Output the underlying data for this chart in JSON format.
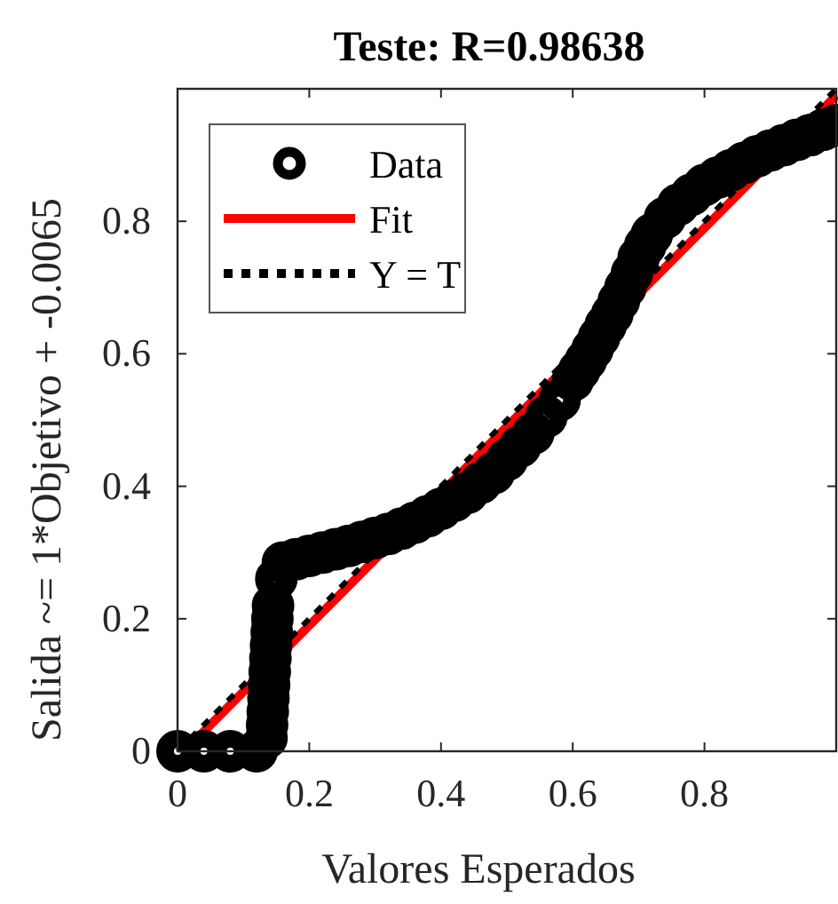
{
  "chart_data": {
    "type": "scatter",
    "title": "Teste: R=0.98638",
    "xlabel": "Valores Esperados",
    "ylabel": "Salida ~= 1*Objetivo + -0.0065",
    "xlim": [
      0,
      1
    ],
    "ylim": [
      0,
      1
    ],
    "xticks": [
      0,
      0.2,
      0.4,
      0.6,
      0.8
    ],
    "yticks": [
      0,
      0.2,
      0.4,
      0.6,
      0.8
    ],
    "grid": false,
    "legend": "top left",
    "series": [
      {
        "name": "Data",
        "marker": "circle",
        "color": "#000000",
        "x": [
          0,
          0.04,
          0.08,
          0.12,
          0.135,
          0.136,
          0.137,
          0.138,
          0.139,
          0.14,
          0.141,
          0.142,
          0.143,
          0.144,
          0.145,
          0.15,
          0.16,
          0.18,
          0.2,
          0.22,
          0.24,
          0.26,
          0.28,
          0.3,
          0.32,
          0.34,
          0.36,
          0.38,
          0.4,
          0.42,
          0.44,
          0.46,
          0.48,
          0.5,
          0.52,
          0.54,
          0.56,
          0.58,
          0.6,
          0.61,
          0.62,
          0.63,
          0.64,
          0.65,
          0.66,
          0.67,
          0.68,
          0.69,
          0.7,
          0.71,
          0.72,
          0.74,
          0.76,
          0.78,
          0.8,
          0.82,
          0.84,
          0.86,
          0.88,
          0.9,
          0.92,
          0.94,
          0.96,
          0.98,
          1
        ],
        "values": [
          0,
          0,
          0,
          0,
          0.02,
          0.04,
          0.06,
          0.08,
          0.1,
          0.12,
          0.14,
          0.16,
          0.18,
          0.2,
          0.22,
          0.26,
          0.285,
          0.29,
          0.295,
          0.3,
          0.305,
          0.31,
          0.316,
          0.322,
          0.328,
          0.336,
          0.345,
          0.355,
          0.366,
          0.378,
          0.39,
          0.405,
          0.42,
          0.44,
          0.46,
          0.48,
          0.505,
          0.53,
          0.56,
          0.575,
          0.59,
          0.607,
          0.625,
          0.643,
          0.66,
          0.68,
          0.7,
          0.722,
          0.745,
          0.763,
          0.78,
          0.805,
          0.825,
          0.84,
          0.855,
          0.866,
          0.877,
          0.888,
          0.898,
          0.907,
          0.915,
          0.923,
          0.93,
          0.938,
          0.945
        ]
      },
      {
        "name": "Fit",
        "type": "line",
        "line_style": "solid",
        "color": "#ff0000",
        "x": [
          0.01,
          1
        ],
        "values": [
          0,
          0.99
        ]
      },
      {
        "name": "Y = T",
        "type": "line",
        "line_style": "dotted",
        "color": "#000000",
        "x": [
          0,
          1
        ],
        "values": [
          0,
          1
        ]
      }
    ]
  }
}
